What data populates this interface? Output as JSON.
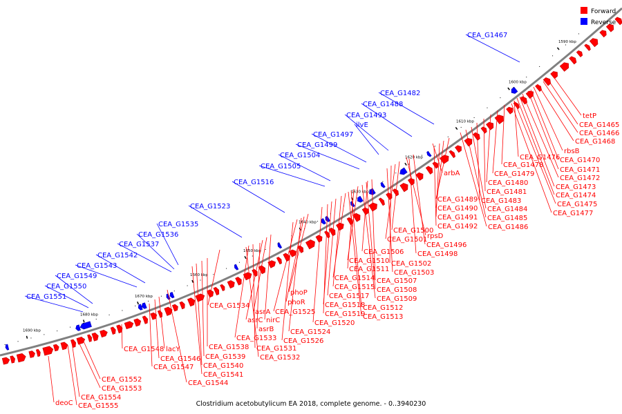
{
  "colors": {
    "forward": "#ff0000",
    "reverse": "#0000ff",
    "backbone": "#808080"
  },
  "legend": {
    "forward": "Forward",
    "reverse": "Reverse"
  },
  "caption": "Clostridium acetobutylicum EA 2018, complete genome. - 0..3940230",
  "chart_data": {
    "type": "linear-genome-map",
    "tick_labels": [
      "1590 kbp",
      "1600 kbp",
      "1610 kbp",
      "1620 kbp",
      "1630 kbp",
      "1640 kbp",
      "1650 kbp",
      "1660 kbp",
      "1670 kbp",
      "1680 kbp",
      "1690 kbp"
    ],
    "reverse_genes": [
      "CEA_G1467",
      "CEA_G1482",
      "CEA_G1488",
      "CEA_G1493",
      "ilvE",
      "CEA_G1497",
      "CEA_G1499",
      "CEA_G1504",
      "CEA_G1505",
      "CEA_G1516",
      "CEA_G1523",
      "CEA_G1535",
      "CEA_G1536",
      "CEA_G1537",
      "CEA_G1542",
      "CEA_G1543",
      "CEA_G1549",
      "CEA_G1550",
      "CEA_G1551"
    ],
    "forward_genes": [
      "tetP",
      "CEA_G1465",
      "CEA_G1466",
      "CEA_G1468",
      "rbsB",
      "CEA_G1470",
      "CEA_G1476",
      "CEA_G1471",
      "CEA_G1478",
      "CEA_G1472",
      "CEA_G1479",
      "CEA_G1473",
      "CEA_G1480",
      "CEA_G1474",
      "CEA_G1481",
      "CEA_G1475",
      "CEA_G1483",
      "CEA_G1477",
      "CEA_G1484",
      "CEA_G1485",
      "CEA_G1486",
      "arbA",
      "CEA_G1489",
      "CEA_G1490",
      "CEA_G1491",
      "CEA_G1492",
      "CEA_G1500",
      "rpsD",
      "CEA_G1501",
      "CEA_G1496",
      "CEA_G1498",
      "CEA_G1506",
      "CEA_G1510",
      "CEA_G1511",
      "CEA_G1502",
      "CEA_G1503",
      "CEA_G1514",
      "CEA_G1507",
      "CEA_G1515",
      "CEA_G1508",
      "CEA_G1517",
      "CEA_G1509",
      "CEA_G1518",
      "CEA_G1512",
      "CEA_G1519",
      "CEA_G1513",
      "CEA_G1520",
      "phoP",
      "phoR",
      "CEA_G1525",
      "CEA_G1524",
      "CEA_G1526",
      "CEA_G1534",
      "asrA",
      "asrC",
      "nirC",
      "asrB",
      "CEA_G1533",
      "CEA_G1531",
      "CEA_G1538",
      "CEA_G1532",
      "CEA_G1539",
      "CEA_G1548",
      "lacY",
      "CEA_G1546",
      "CEA_G1540",
      "CEA_G1547",
      "CEA_G1541",
      "CEA_G1544",
      "CEA_G1552",
      "CEA_G1553",
      "deoC",
      "CEA_G1554",
      "CEA_G1555"
    ]
  }
}
